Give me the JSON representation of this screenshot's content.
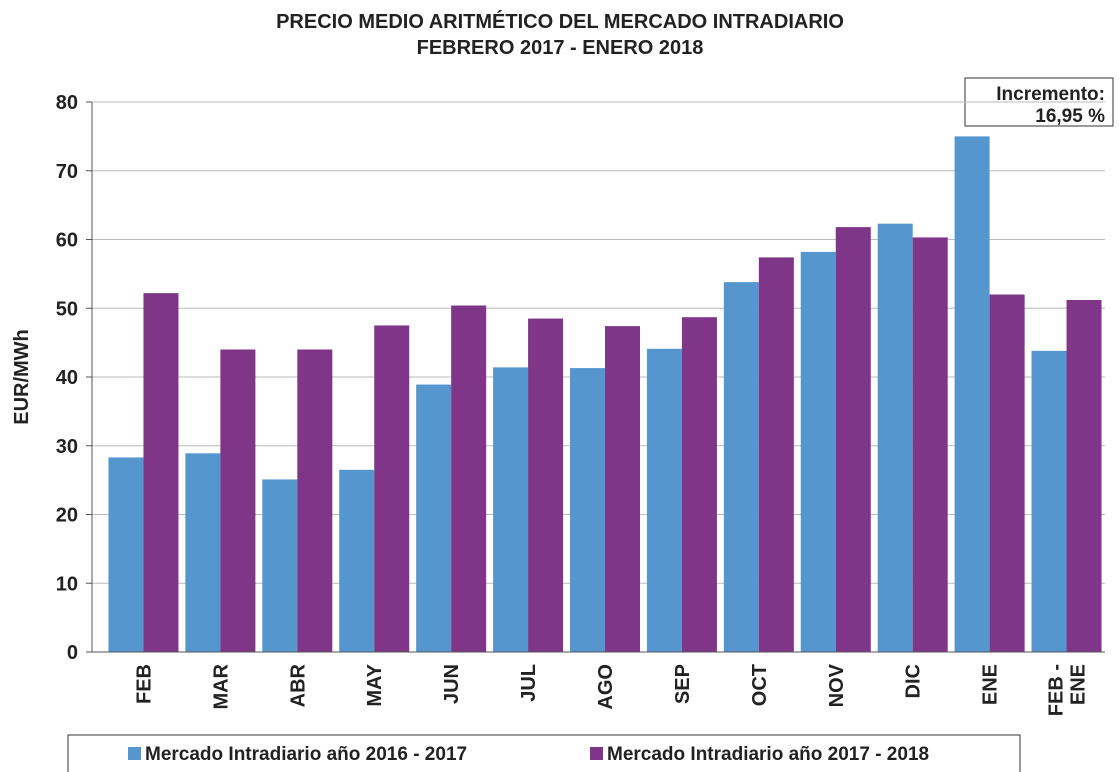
{
  "chart_data": {
    "type": "bar",
    "title": "PRECIO MEDIO ARITMÉTICO DEL MERCADO INTRADIARIO",
    "subtitle": "FEBRERO 2017 - ENERO 2018",
    "y_label": "EUR/MWh",
    "annotation": [
      "Incremento:",
      "16,95 %"
    ],
    "categories": [
      "FEB",
      "MAR",
      "ABR",
      "MAY",
      "JUN",
      "JUL",
      "AGO",
      "SEP",
      "OCT",
      "NOV",
      "DIC",
      "ENE",
      "FEB - ENE"
    ],
    "series": [
      {
        "name": "Mercado Intradiario año 2016 - 2017",
        "color": "#5596cf",
        "values": [
          28.3,
          28.9,
          25.1,
          26.5,
          38.9,
          41.4,
          41.3,
          44.1,
          53.8,
          58.2,
          62.3,
          75.0,
          43.8
        ]
      },
      {
        "name": "Mercado Intradiario año 2017 - 2018",
        "color": "#7f3588",
        "values": [
          52.2,
          44.0,
          44.0,
          47.5,
          50.4,
          48.5,
          47.4,
          48.7,
          57.4,
          61.8,
          60.3,
          52.0,
          51.2
        ]
      }
    ],
    "ylim": [
      0,
      80
    ],
    "yticks": [
      0,
      10,
      20,
      30,
      40,
      50,
      60,
      70,
      80
    ],
    "grid": true
  }
}
